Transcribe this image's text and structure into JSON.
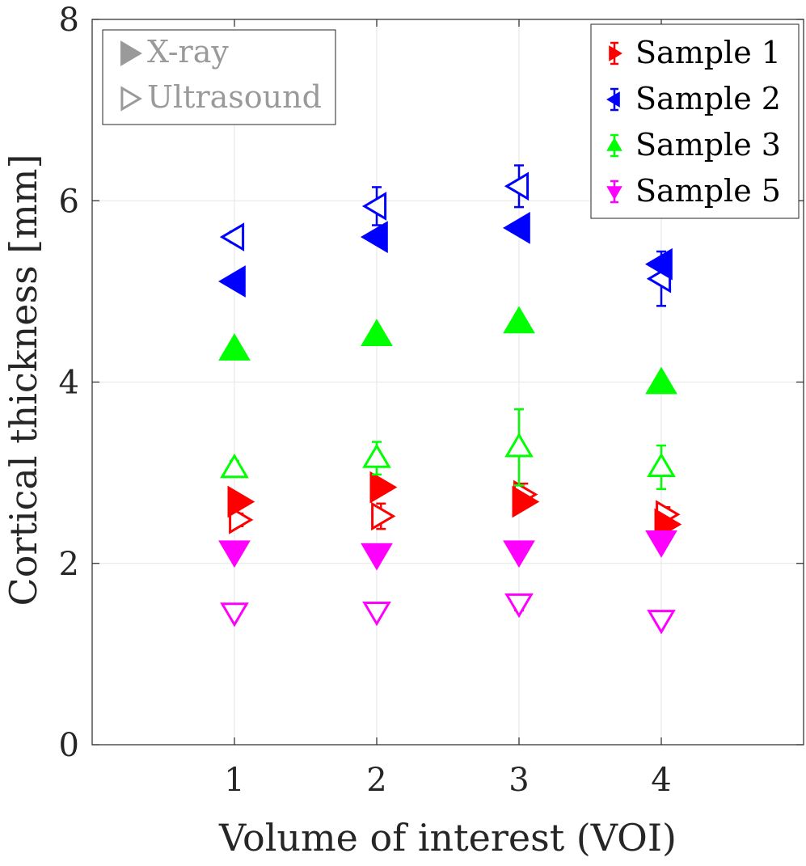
{
  "chart_data": {
    "type": "scatter",
    "title": "",
    "xlabel": "Volume of interest (VOI)",
    "ylabel": "Cortical thickness [mm]",
    "xlim": [
      0,
      5
    ],
    "ylim": [
      0,
      8
    ],
    "xticks": [
      "1",
      "2",
      "3",
      "4"
    ],
    "yticks": [
      "0",
      "2",
      "4",
      "6",
      "8"
    ],
    "grid": true,
    "legend_position": "top-right",
    "method_legend_position": "top-left",
    "methods": [
      {
        "name": "X-ray",
        "marker": "filled"
      },
      {
        "name": "Ultrasound",
        "marker": "hollow"
      }
    ],
    "series": [
      {
        "name": "Sample 1",
        "color": "#ff0000",
        "marker": "triangle-right",
        "offset": 0.03,
        "xray": [
          2.68,
          2.84,
          2.68,
          2.43
        ],
        "ultrasound": [
          2.48,
          2.52,
          2.76,
          2.54
        ],
        "ultrasound_err": [
          0.07,
          0.14,
          0.12,
          0.08
        ]
      },
      {
        "name": "Sample 2",
        "color": "#0000ff",
        "marker": "triangle-left",
        "offset": 0.0,
        "xray": [
          5.11,
          5.6,
          5.7,
          5.3
        ],
        "ultrasound": [
          5.6,
          5.94,
          6.16,
          5.14
        ],
        "ultrasound_err": [
          0.06,
          0.21,
          0.23,
          0.3
        ]
      },
      {
        "name": "Sample 3",
        "color": "#00ff00",
        "marker": "triangle-up",
        "offset": 0.0,
        "xray": [
          4.36,
          4.52,
          4.66,
          3.99
        ],
        "ultrasound": [
          3.05,
          3.16,
          3.28,
          3.06
        ],
        "ultrasound_err": [
          0.08,
          0.18,
          0.42,
          0.24
        ]
      },
      {
        "name": "Sample 5",
        "color": "#ff00ff",
        "marker": "triangle-down",
        "offset": 0.0,
        "xray": [
          2.13,
          2.1,
          2.13,
          2.24
        ],
        "ultrasound": [
          1.46,
          1.47,
          1.56,
          1.38
        ],
        "ultrasound_err": [
          0.04,
          0.05,
          0.08,
          0.03
        ]
      }
    ]
  }
}
